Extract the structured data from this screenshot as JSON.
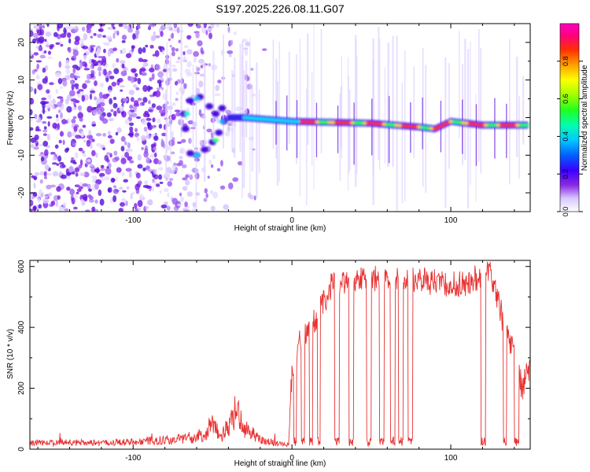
{
  "chart_data": [
    {
      "type": "heatmap",
      "title": "S197.2025.226.08.11.G07",
      "xlabel": "Height of straight line (km)",
      "ylabel": "Frequency (Hz)",
      "xlim": [
        -165,
        150
      ],
      "ylim": [
        -25,
        25
      ],
      "xticks": [
        -100,
        0,
        100
      ],
      "xtick_labels": [
        "-100",
        "0",
        "100"
      ],
      "yticks": [
        -20,
        -10,
        0,
        10,
        20
      ],
      "ytick_labels": [
        "-20",
        "-10",
        "0",
        "10",
        "20"
      ],
      "colorbar": {
        "label": "Normalized spectral amplitude",
        "range": [
          0.0,
          1.0
        ],
        "ticks": [
          0.0,
          0.2,
          0.4,
          0.6,
          0.8
        ],
        "tick_labels": [
          "0.0",
          "0.2",
          "0.4",
          "0.6",
          "0.8"
        ]
      },
      "signal_track": {
        "description_points": [
          [
            -65,
            5
          ],
          [
            -55,
            -9.5
          ],
          [
            -45,
            0
          ],
          [
            -30,
            0
          ],
          [
            0,
            -1
          ],
          [
            50,
            -1.5
          ],
          [
            80,
            -2.5
          ],
          [
            90,
            -3
          ],
          [
            100,
            -1
          ],
          [
            120,
            -2
          ],
          [
            150,
            -2
          ]
        ],
        "noise_region_x": [
          -165,
          -15
        ]
      }
    },
    {
      "type": "line",
      "xlabel": "Height of straight line (km)",
      "ylabel": "SNR (10 * v/v)",
      "xlim": [
        -165,
        150
      ],
      "ylim": [
        0,
        620
      ],
      "xticks": [
        -100,
        0,
        100
      ],
      "xtick_labels": [
        "-100",
        "0",
        "100"
      ],
      "yticks": [
        0,
        200,
        400,
        600
      ],
      "ytick_labels": [
        "0",
        "200",
        "400",
        "600"
      ],
      "series": [
        {
          "name": "SNR",
          "color": "#e83030",
          "x": [
            -165,
            -140,
            -120,
            -100,
            -80,
            -60,
            -55,
            -50,
            -45,
            -40,
            -35,
            -30,
            -25,
            -20,
            -10,
            -2,
            0,
            2,
            5,
            10,
            15,
            20,
            25,
            30,
            40,
            50,
            60,
            70,
            80,
            90,
            100,
            110,
            115,
            120,
            125,
            130,
            135,
            140,
            145,
            150
          ],
          "values": [
            20,
            22,
            20,
            25,
            30,
            40,
            50,
            90,
            40,
            80,
            130,
            70,
            50,
            30,
            20,
            15,
            230,
            280,
            350,
            390,
            430,
            480,
            540,
            550,
            555,
            560,
            565,
            560,
            555,
            550,
            540,
            545,
            560,
            580,
            590,
            480,
            380,
            320,
            200,
            280
          ]
        }
      ],
      "dropouts": [
        [
          1,
          3
        ],
        [
          6,
          8
        ],
        [
          11,
          13
        ],
        [
          16,
          18
        ],
        [
          27,
          30
        ],
        [
          36,
          39
        ],
        [
          47,
          50
        ],
        [
          55,
          58
        ],
        [
          62,
          65
        ],
        [
          67,
          70
        ],
        [
          73,
          76
        ],
        [
          119,
          122
        ],
        [
          133,
          135
        ],
        [
          140,
          143
        ]
      ]
    }
  ]
}
